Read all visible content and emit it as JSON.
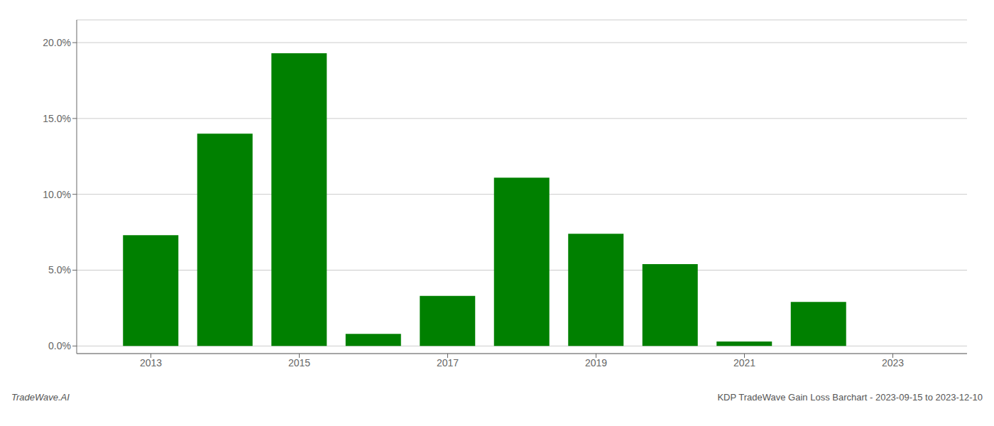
{
  "chart_data": {
    "type": "bar",
    "x": [
      2013,
      2014,
      2015,
      2016,
      2017,
      2018,
      2019,
      2020,
      2021,
      2022,
      2023
    ],
    "values": [
      0.073,
      0.14,
      0.193,
      0.008,
      0.033,
      0.111,
      0.074,
      0.054,
      0.003,
      0.029,
      0.0
    ],
    "color": "#008000",
    "xlim": [
      2012,
      2024
    ],
    "xticks": [
      2013,
      2015,
      2017,
      2019,
      2021,
      2023
    ],
    "ylim": [
      -0.005,
      0.215
    ],
    "yticks": [
      {
        "value": 0.0,
        "label": "0.0%"
      },
      {
        "value": 0.05,
        "label": "5.0%"
      },
      {
        "value": 0.1,
        "label": "10.0%"
      },
      {
        "value": 0.15,
        "label": "15.0%"
      },
      {
        "value": 0.2,
        "label": "20.0%"
      }
    ],
    "grid": "y",
    "annotations": [
      "TradeWave.AI",
      "KDP TradeWave Gain Loss Barchart - 2023-09-15 to 2023-12-10"
    ]
  }
}
